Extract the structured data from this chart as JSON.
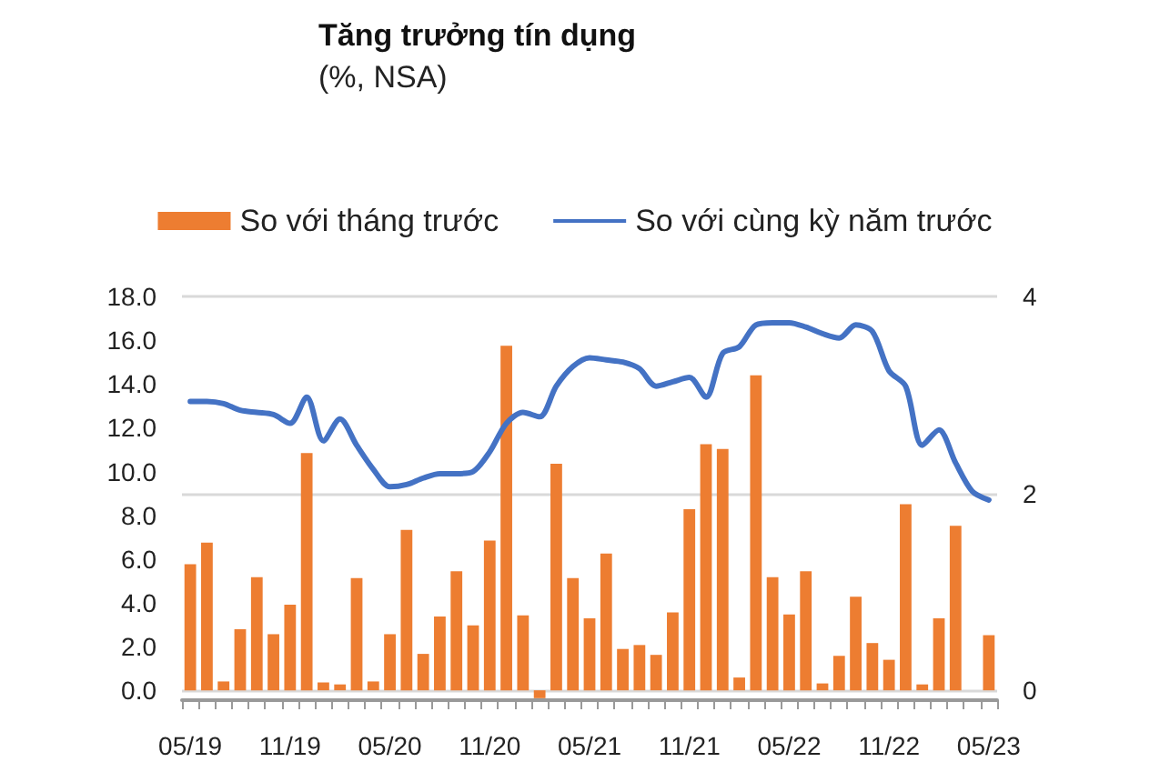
{
  "chart_data": {
    "type": "bar",
    "title": "Tăng trưởng tín dụng",
    "subtitle": "(%, NSA)",
    "categories": [
      "05/19",
      null,
      null,
      null,
      null,
      null,
      "11/19",
      null,
      null,
      null,
      null,
      null,
      "05/20",
      null,
      null,
      null,
      null,
      null,
      "11/20",
      null,
      null,
      null,
      null,
      null,
      "05/21",
      null,
      null,
      null,
      null,
      null,
      "11/21",
      null,
      null,
      null,
      null,
      null,
      "05/22",
      null,
      null,
      null,
      null,
      null,
      "11/22",
      null,
      null,
      null,
      null,
      null,
      "05/23"
    ],
    "series": [
      {
        "name": "So với tháng trước",
        "axis": "y2",
        "color": "#ed7d31",
        "values": [
          1.28,
          1.5,
          0.09,
          0.62,
          1.15,
          0.57,
          0.87,
          2.41,
          0.08,
          0.06,
          1.14,
          0.09,
          0.57,
          1.63,
          0.37,
          0.75,
          1.21,
          0.66,
          1.52,
          3.5,
          0.76,
          -0.08,
          2.3,
          1.14,
          0.73,
          1.39,
          0.42,
          0.46,
          0.36,
          0.79,
          1.84,
          2.5,
          2.45,
          0.13,
          3.2,
          1.15,
          0.77,
          1.21,
          0.07,
          0.35,
          0.95,
          0.48,
          0.31,
          1.89,
          0.06,
          0.73,
          1.67,
          0,
          0.56
        ]
      },
      {
        "name": "So với cùng kỳ năm trước",
        "type": "line",
        "color": "#4472c4",
        "values": [
          13.2,
          13.2,
          13.1,
          12.8,
          12.7,
          12.6,
          12.2,
          13.4,
          11.4,
          12.4,
          11.2,
          10.1,
          9.3,
          9.4,
          9.7,
          9.9,
          9.9,
          10.0,
          10.9,
          12.2,
          12.7,
          12.5,
          13.9,
          14.8,
          15.2,
          15.1,
          15.0,
          14.7,
          13.9,
          14.1,
          14.3,
          13.4,
          15.4,
          15.7,
          16.7,
          16.8,
          16.8,
          16.6,
          16.3,
          16.1,
          16.7,
          16.4,
          14.6,
          13.9,
          11.2,
          11.9,
          10.4,
          9.1,
          8.7
        ]
      }
    ],
    "ylim": [
      -0.45,
      18
    ],
    "yticks": [
      {
        "value": 0,
        "label": "0.0"
      },
      {
        "value": 2,
        "label": "2.0"
      },
      {
        "value": 4,
        "label": "4.0"
      },
      {
        "value": 6,
        "label": "6.0"
      },
      {
        "value": 8,
        "label": "8.0"
      },
      {
        "value": 10,
        "label": "10.0"
      },
      {
        "value": 12,
        "label": "12.0"
      },
      {
        "value": 14,
        "label": "14.0"
      },
      {
        "value": 16,
        "label": "16.0"
      },
      {
        "value": 18,
        "label": "18.0"
      }
    ],
    "y2lim": [
      -0.1,
      4
    ],
    "y2ticks": [
      0,
      2,
      4
    ],
    "grid": true,
    "legend": "top",
    "marker": "none",
    "line_style": "solid"
  }
}
